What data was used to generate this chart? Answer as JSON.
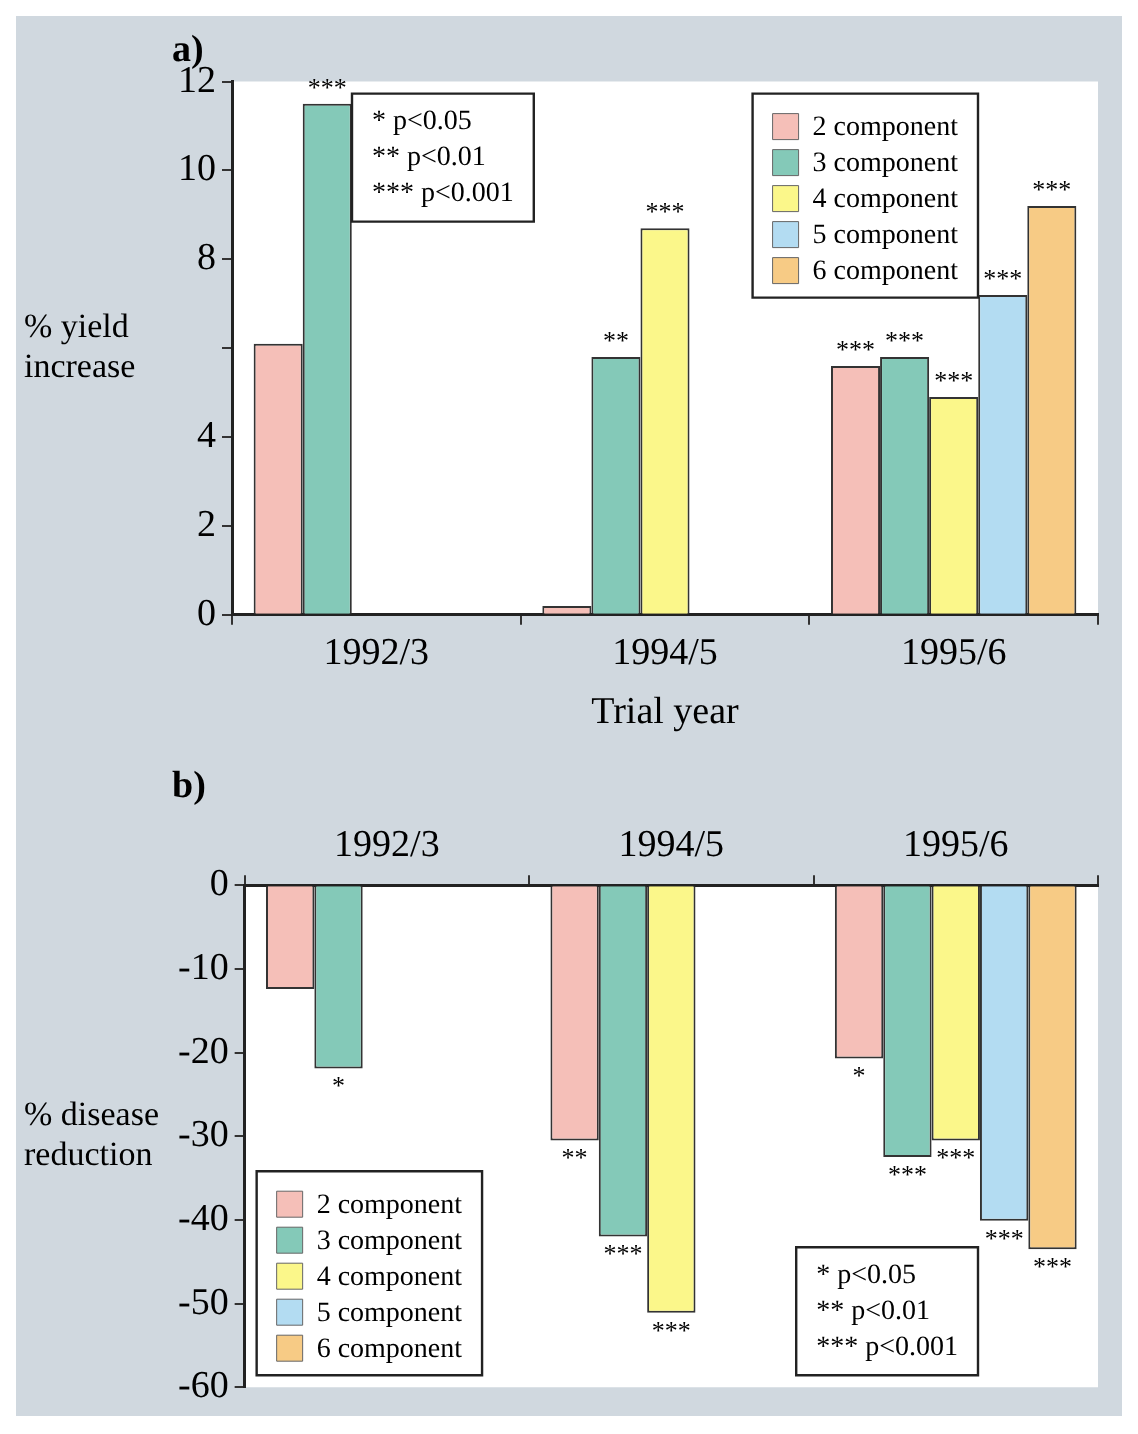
{
  "chart_data": [
    {
      "type": "bar",
      "title": "a)",
      "xlabel": "Trial year",
      "ylabel": "% yield increase",
      "categories": [
        "1992/3",
        "1994/5",
        "1995/6"
      ],
      "ylim": [
        0,
        12
      ],
      "yticks": [
        0,
        2,
        4,
        {
          "value": 6,
          "label": null
        },
        8,
        10,
        12
      ],
      "legend": "top right",
      "annotations": [
        "* p<0.05",
        "** p<0.01",
        "*** p<0.001"
      ],
      "series": [
        {
          "name": "2 component",
          "color": "#f5bfb8",
          "values": [
            6.1,
            0.2,
            5.6
          ],
          "value_labels": [
            null,
            null,
            "***"
          ]
        },
        {
          "name": "3 component",
          "color": "#84c9b8",
          "values": [
            11.5,
            5.8,
            5.8
          ],
          "value_labels": [
            "***",
            "**",
            "***"
          ]
        },
        {
          "name": "4 component",
          "color": "#fbf78a",
          "values": [
            null,
            8.7,
            4.9
          ],
          "value_labels": [
            null,
            "***",
            "***"
          ]
        },
        {
          "name": "5 component",
          "color": "#b3dcf2",
          "values": [
            null,
            null,
            7.2
          ],
          "value_labels": [
            null,
            null,
            "***"
          ]
        },
        {
          "name": "6 component",
          "color": "#f7cb85",
          "values": [
            null,
            null,
            9.2
          ],
          "value_labels": [
            null,
            null,
            "***"
          ]
        }
      ]
    },
    {
      "type": "bar",
      "title": "b)",
      "ylabel": "% disease reduction",
      "categories": [
        "1992/3",
        "1994/5",
        "1995/6"
      ],
      "ylim": [
        -60,
        0
      ],
      "yticks": [
        -60,
        -50,
        -40,
        -30,
        -20,
        -10,
        0
      ],
      "legend": "bottom left",
      "annotations": [
        "* p<0.05",
        "** p<0.01",
        "*** p<0.001"
      ],
      "series": [
        {
          "name": "2 component",
          "color": "#f5bfb8",
          "values": [
            -12.4,
            -30.5,
            -20.7
          ],
          "value_labels": [
            null,
            "**",
            "*"
          ]
        },
        {
          "name": "3 component",
          "color": "#84c9b8",
          "values": [
            -21.9,
            -42.0,
            -32.5
          ],
          "value_labels": [
            "*",
            "***",
            "***"
          ]
        },
        {
          "name": "4 component",
          "color": "#fbf78a",
          "values": [
            null,
            -51.1,
            -30.5
          ],
          "value_labels": [
            null,
            "***",
            "***"
          ]
        },
        {
          "name": "5 component",
          "color": "#b3dcf2",
          "values": [
            null,
            null,
            -40.1
          ],
          "value_labels": [
            null,
            null,
            "***"
          ]
        },
        {
          "name": "6 component",
          "color": "#f7cb85",
          "values": [
            null,
            null,
            -43.5
          ],
          "value_labels": [
            null,
            null,
            "***"
          ]
        }
      ]
    }
  ]
}
